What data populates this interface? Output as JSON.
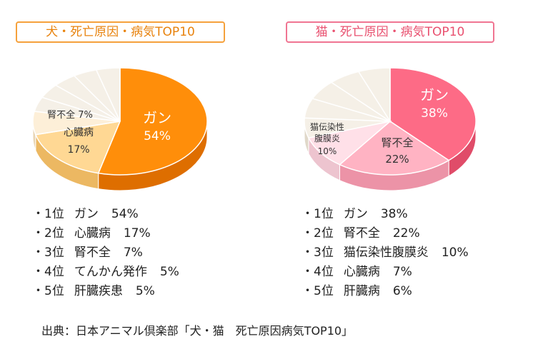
{
  "chart_data": [
    {
      "type": "pie",
      "title": "犬・死亡原因・病気TOP10",
      "slices": [
        {
          "label": "ガン",
          "value": 54,
          "pct": "54%",
          "color": "#FF8E0A",
          "side": "#DE6E00"
        },
        {
          "label": "心臓病",
          "value": 17,
          "pct": "17%",
          "color": "#FFD894",
          "side": "#ECB862"
        },
        {
          "label": "腎不全",
          "value": 7,
          "pct": "7%",
          "color": "#FDEFD8",
          "side": "#E8D4B2"
        },
        {
          "label": "",
          "value": 4.4,
          "pct": "",
          "color": "#F5F0E7",
          "side": "#E0D8C9"
        },
        {
          "label": "",
          "value": 4.4,
          "pct": "",
          "color": "#F5F0E7",
          "side": "#E0D8C9"
        },
        {
          "label": "",
          "value": 4.4,
          "pct": "",
          "color": "#F5F0E7",
          "side": "#E0D8C9"
        },
        {
          "label": "",
          "value": 4.4,
          "pct": "",
          "color": "#F5F0E7",
          "side": "#E0D8C9"
        },
        {
          "label": "",
          "value": 4.4,
          "pct": "",
          "color": "#F5F0E7",
          "side": "#E0D8C9"
        }
      ],
      "ranking": [
        {
          "rank": "・1位",
          "name": "ガン",
          "pct": "54%"
        },
        {
          "rank": "・2位",
          "name": "心臓病",
          "pct": "17%"
        },
        {
          "rank": "・3位",
          "name": "腎不全",
          "pct": "7%"
        },
        {
          "rank": "・4位",
          "name": "てんかん発作",
          "pct": "5%"
        },
        {
          "rank": "・5位",
          "name": "肝臓疾患",
          "pct": "5%"
        }
      ]
    },
    {
      "type": "pie",
      "title": "猫・死亡原因・病気TOP10",
      "slices": [
        {
          "label": "ガン",
          "value": 38,
          "pct": "38%",
          "color": "#FD6B86",
          "side": "#E04C69"
        },
        {
          "label": "腎不全",
          "value": 22,
          "pct": "22%",
          "color": "#FFB3C3",
          "side": "#EC93A7"
        },
        {
          "label": "猫伝染性\n腹膜炎",
          "value": 10,
          "pct": "10%",
          "color": "#FFE0E8",
          "side": "#EDC4CF"
        },
        {
          "label": "",
          "value": 6,
          "pct": "",
          "color": "#F5F0E7",
          "side": "#E0D8C9"
        },
        {
          "label": "",
          "value": 6,
          "pct": "",
          "color": "#F5F0E7",
          "side": "#E0D8C9"
        },
        {
          "label": "",
          "value": 6,
          "pct": "",
          "color": "#F5F0E7",
          "side": "#E0D8C9"
        },
        {
          "label": "",
          "value": 6,
          "pct": "",
          "color": "#F5F0E7",
          "side": "#E0D8C9"
        },
        {
          "label": "",
          "value": 6,
          "pct": "",
          "color": "#F5F0E7",
          "side": "#E0D8C9"
        }
      ],
      "ranking": [
        {
          "rank": "・1位",
          "name": "ガン",
          "pct": "38%"
        },
        {
          "rank": "・2位",
          "name": "腎不全",
          "pct": "22%"
        },
        {
          "rank": "・3位",
          "name": "猫伝染性腹膜炎",
          "pct": "10%"
        },
        {
          "rank": "・4位",
          "name": "心臓病",
          "pct": "7%"
        },
        {
          "rank": "・5位",
          "name": "肝臓病",
          "pct": "6%"
        }
      ]
    }
  ],
  "source": "出典：日本アニマル倶楽部「犬・猫　死亡原因病気TOP10」"
}
